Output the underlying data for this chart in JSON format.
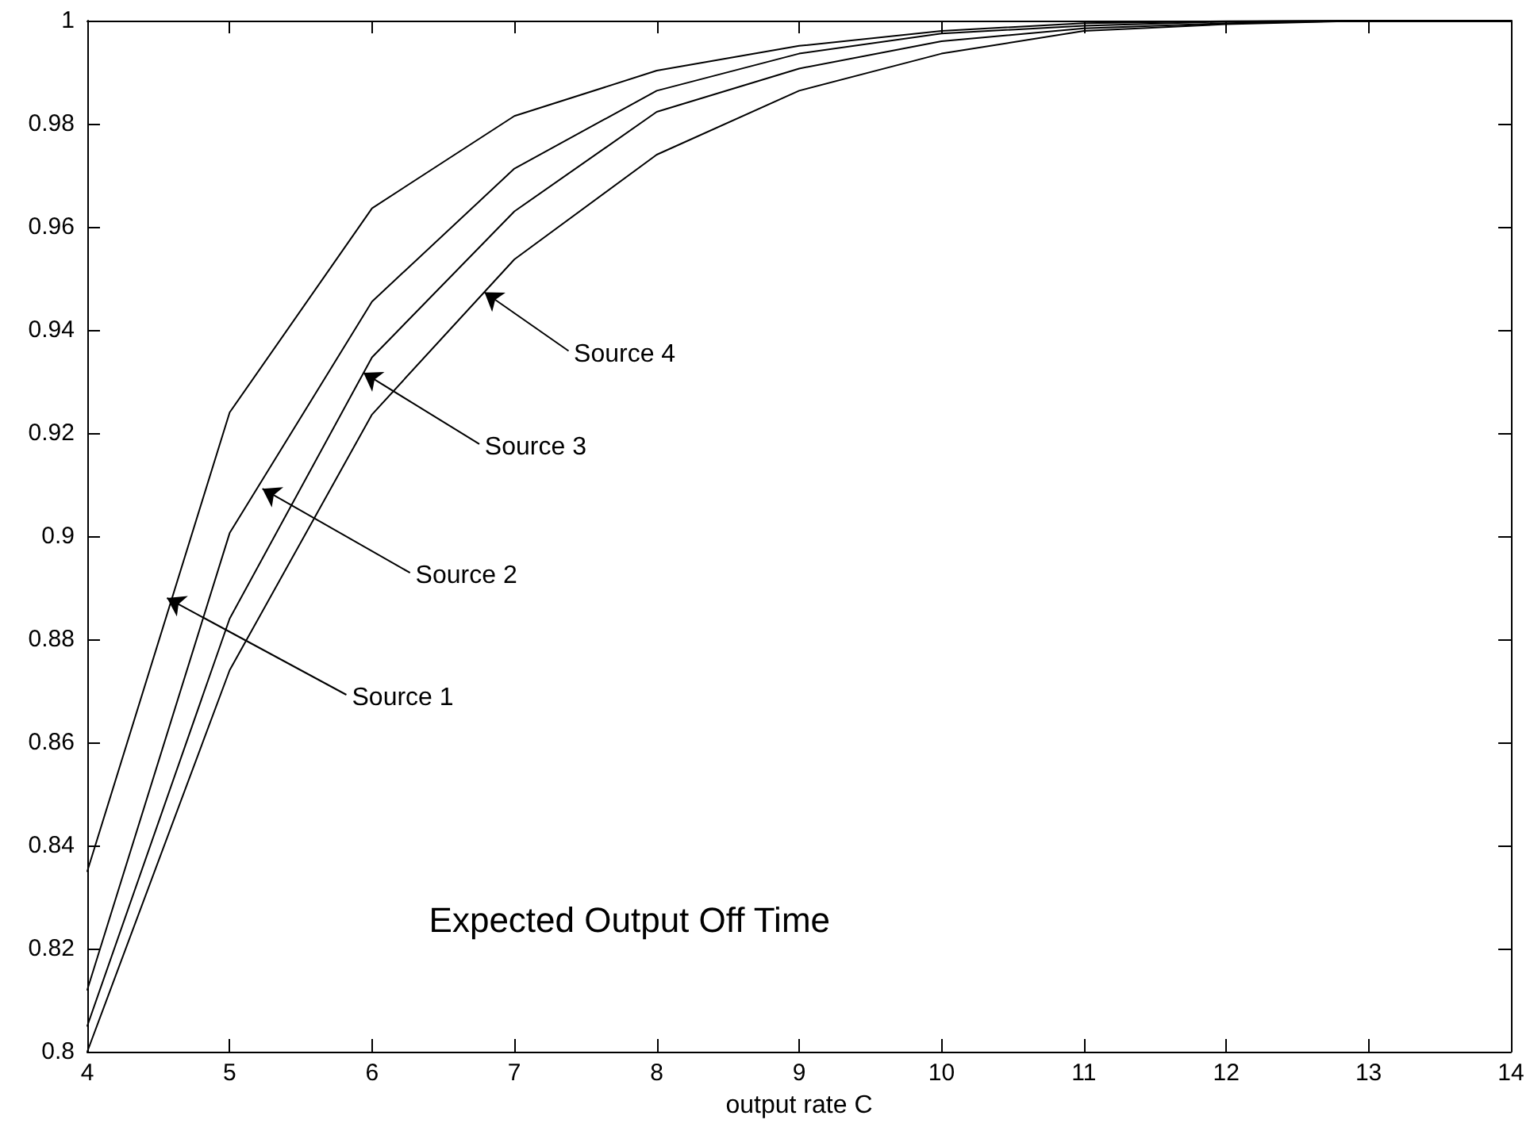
{
  "chart_data": {
    "type": "line",
    "xlabel": "output rate C",
    "x": [
      4,
      5,
      6,
      7,
      8,
      9,
      10,
      11,
      12,
      13,
      14
    ],
    "series": [
      {
        "color": "#000000",
        "values": [
          0.835,
          0.924,
          0.9636,
          0.9815,
          0.9903,
          0.9951,
          0.998,
          0.9995,
          0.9999,
          1,
          1
        ]
      },
      {
        "color": "#000000",
        "values": [
          0.812,
          0.9006,
          0.9455,
          0.9713,
          0.9864,
          0.9936,
          0.9975,
          0.999,
          0.9998,
          1,
          1
        ]
      },
      {
        "color": "#000000",
        "values": [
          0.805,
          0.884,
          0.9347,
          0.963,
          0.9823,
          0.9907,
          0.996,
          0.9985,
          0.9995,
          1,
          1
        ]
      },
      {
        "color": "#000000",
        "values": [
          0.8,
          0.874,
          0.9236,
          0.9537,
          0.974,
          0.9864,
          0.9936,
          0.998,
          0.9993,
          1,
          1
        ]
      }
    ],
    "annotations": [
      {
        "text": "Source 1",
        "x": 4.56,
        "y": 0.888
      },
      {
        "text": "Source 2",
        "x": 5.23,
        "y": 0.9092
      },
      {
        "text": "Source 3",
        "x": 5.94,
        "y": 0.9317
      },
      {
        "text": "Source 4",
        "x": 6.79,
        "y": 0.9473
      },
      "Expected Output Off Time"
    ],
    "xlim": [
      4,
      14
    ],
    "xticks": [
      4,
      5,
      6,
      7,
      8,
      9,
      10,
      11,
      12,
      13,
      14
    ],
    "ylim": [
      0.8,
      1
    ],
    "yticks": [
      0.8,
      0.82,
      0.84,
      0.86,
      0.88,
      0.9,
      0.92,
      0.94,
      0.96,
      0.98,
      1
    ],
    "grid": false,
    "marker": "none",
    "line_style": "solid"
  }
}
